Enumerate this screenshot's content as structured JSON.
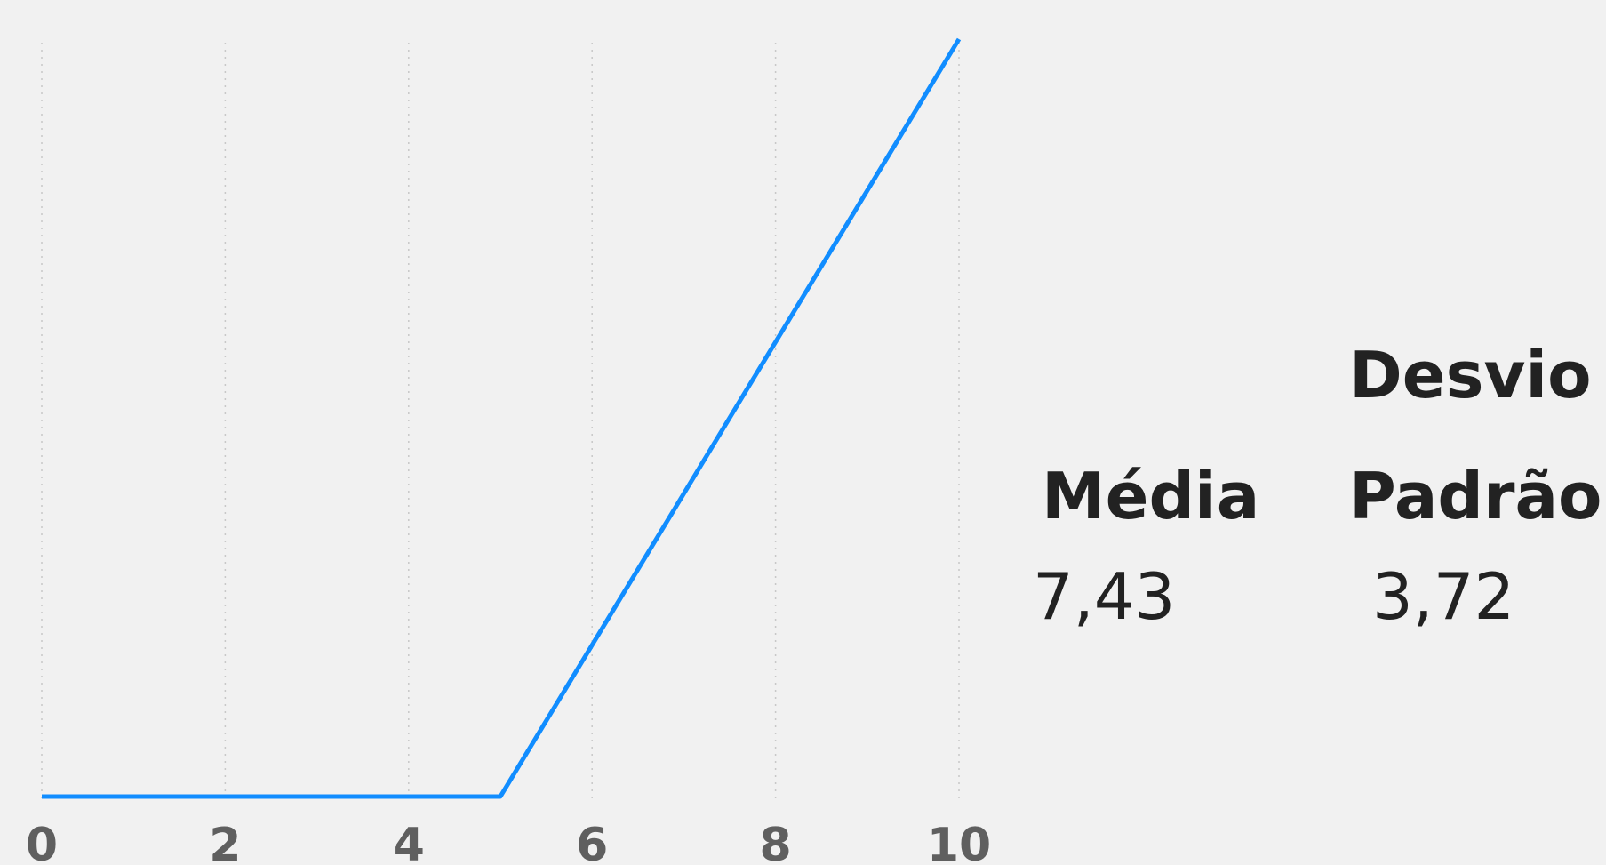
{
  "chart_data": {
    "type": "line",
    "title": "",
    "xlabel": "",
    "ylabel": "",
    "x_ticks": [
      "0",
      "2",
      "4",
      "6",
      "8",
      "10"
    ],
    "xlim": [
      0,
      10
    ],
    "ylim": [
      0,
      1
    ],
    "grid": "vertical-dotted",
    "series": [
      {
        "color": "#118dff",
        "points": [
          {
            "x": 0,
            "y": 0
          },
          {
            "x": 5,
            "y": 0
          },
          {
            "x": 10,
            "y": 1
          }
        ]
      }
    ]
  },
  "kpis": {
    "media": {
      "label": "Média",
      "value": "7,43"
    },
    "desvio_padrao": {
      "label_line1": "Desvio",
      "label_line2": "Padrão",
      "value": "3,72"
    }
  },
  "colors": {
    "background": "#f1f1f1",
    "line": "#118dff",
    "grid": "#c8c8c8",
    "tick_text": "#5f5f5f",
    "kpi_text": "#222222"
  }
}
